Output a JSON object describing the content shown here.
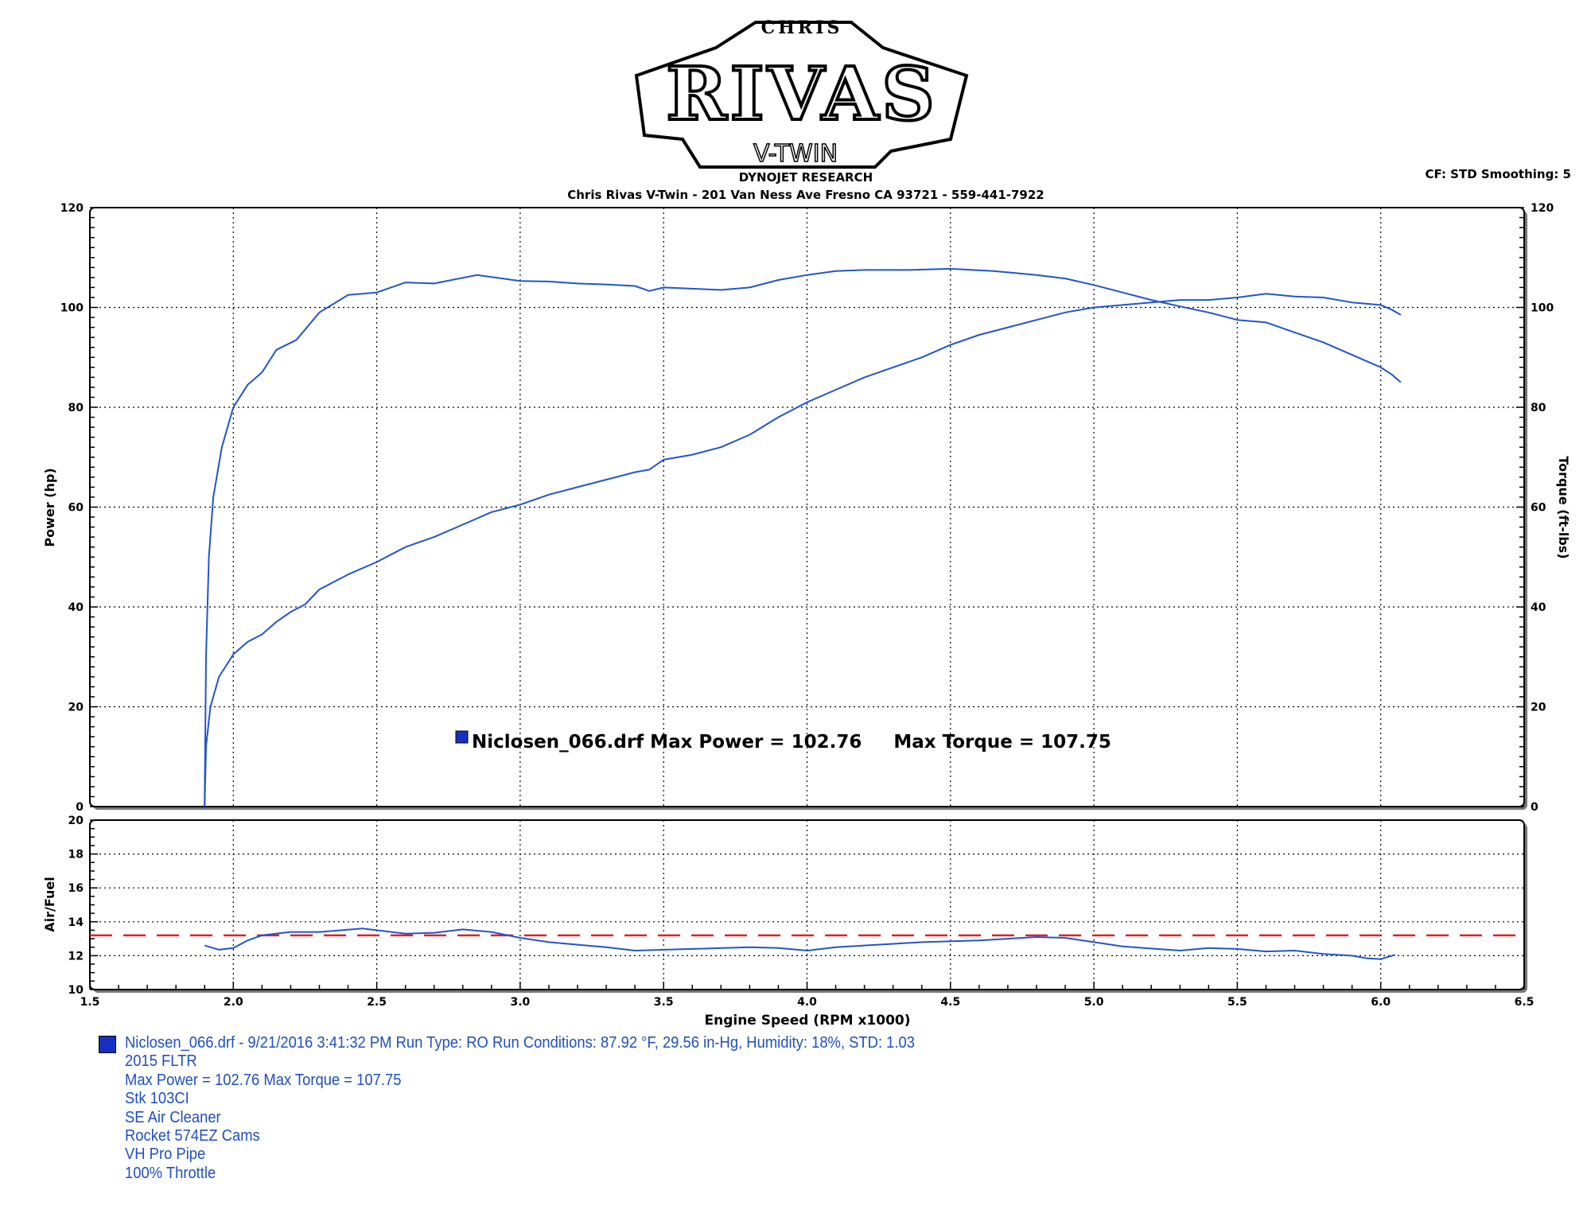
{
  "header": {
    "logo_text": [
      "CHRIS",
      "RIVAS",
      "V-TWIN"
    ],
    "subtitle": "DYNOJET RESEARCH",
    "address": "Chris Rivas V-Twin - 201 Van Ness Ave Fresno CA 93721 - 559-441-7922",
    "settings": "CF: STD  Smoothing: 5"
  },
  "colors": {
    "curve": "#2255cc",
    "afr_target": "#dd2222",
    "marker": "#1530c0"
  },
  "chart_data": [
    {
      "type": "line",
      "ylabel": "Power (hp)",
      "y2label": "Torque (ft-lbs)",
      "xlim": [
        1.5,
        6.5
      ],
      "ylim": [
        0,
        120
      ],
      "y2lim": [
        0,
        120
      ],
      "xticks": [
        "1.5",
        "2.0",
        "2.5",
        "3.0",
        "3.5",
        "4.0",
        "4.5",
        "5.0",
        "5.5",
        "6.0",
        "6.5"
      ],
      "yticks": [
        "0",
        "20",
        "40",
        "60",
        "80",
        "100",
        "120"
      ],
      "grid": true,
      "legend_text": "Niclosen_066.drf Max Power = 102.76     Max Torque = 107.75",
      "series": [
        {
          "key": "power",
          "points": [
            [
              1.9,
              0
            ],
            [
              1.905,
              12
            ],
            [
              1.92,
              20
            ],
            [
              1.95,
              26
            ],
            [
              2.0,
              30.5
            ],
            [
              2.05,
              33
            ],
            [
              2.1,
              34.5
            ],
            [
              2.15,
              37
            ],
            [
              2.2,
              39
            ],
            [
              2.25,
              40.5
            ],
            [
              2.3,
              43.5
            ],
            [
              2.4,
              46.5
            ],
            [
              2.5,
              49
            ],
            [
              2.6,
              52
            ],
            [
              2.7,
              54
            ],
            [
              2.8,
              56.5
            ],
            [
              2.9,
              59
            ],
            [
              3.0,
              60.5
            ],
            [
              3.1,
              62.5
            ],
            [
              3.2,
              64
            ],
            [
              3.3,
              65.5
            ],
            [
              3.4,
              67
            ],
            [
              3.45,
              67.5
            ],
            [
              3.5,
              69.5
            ],
            [
              3.6,
              70.5
            ],
            [
              3.7,
              72
            ],
            [
              3.8,
              74.5
            ],
            [
              3.9,
              78
            ],
            [
              4.0,
              81
            ],
            [
              4.1,
              83.5
            ],
            [
              4.2,
              86
            ],
            [
              4.3,
              88
            ],
            [
              4.4,
              90
            ],
            [
              4.5,
              92.5
            ],
            [
              4.6,
              94.5
            ],
            [
              4.7,
              96
            ],
            [
              4.8,
              97.5
            ],
            [
              4.9,
              99
            ],
            [
              5.0,
              100
            ],
            [
              5.1,
              100.5
            ],
            [
              5.2,
              101
            ],
            [
              5.3,
              101.5
            ],
            [
              5.4,
              101.5
            ],
            [
              5.5,
              102
            ],
            [
              5.6,
              102.76
            ],
            [
              5.7,
              102.2
            ],
            [
              5.8,
              102
            ],
            [
              5.9,
              101
            ],
            [
              6.0,
              100.5
            ],
            [
              6.04,
              99.5
            ],
            [
              6.07,
              98.5
            ]
          ]
        },
        {
          "key": "torque",
          "points": [
            [
              1.9,
              0
            ],
            [
              1.905,
              30
            ],
            [
              1.915,
              50
            ],
            [
              1.93,
              62
            ],
            [
              1.96,
              72
            ],
            [
              2.0,
              80
            ],
            [
              2.05,
              84.5
            ],
            [
              2.1,
              87
            ],
            [
              2.15,
              91.5
            ],
            [
              2.22,
              93.5
            ],
            [
              2.3,
              99
            ],
            [
              2.4,
              102.5
            ],
            [
              2.5,
              103
            ],
            [
              2.6,
              105
            ],
            [
              2.7,
              104.8
            ],
            [
              2.85,
              106.5
            ],
            [
              3.0,
              105.3
            ],
            [
              3.1,
              105.2
            ],
            [
              3.2,
              104.8
            ],
            [
              3.3,
              104.6
            ],
            [
              3.4,
              104.3
            ],
            [
              3.45,
              103.3
            ],
            [
              3.5,
              104
            ],
            [
              3.7,
              103.5
            ],
            [
              3.8,
              104
            ],
            [
              3.9,
              105.5
            ],
            [
              4.0,
              106.5
            ],
            [
              4.1,
              107.3
            ],
            [
              4.2,
              107.5
            ],
            [
              4.35,
              107.5
            ],
            [
              4.5,
              107.75
            ],
            [
              4.65,
              107.3
            ],
            [
              4.8,
              106.5
            ],
            [
              4.9,
              105.8
            ],
            [
              5.0,
              104.5
            ],
            [
              5.1,
              103
            ],
            [
              5.2,
              101.5
            ],
            [
              5.3,
              100.2
            ],
            [
              5.4,
              99
            ],
            [
              5.5,
              97.5
            ],
            [
              5.6,
              97
            ],
            [
              5.7,
              95
            ],
            [
              5.8,
              93
            ],
            [
              5.9,
              90.5
            ],
            [
              6.0,
              88
            ],
            [
              6.04,
              86.5
            ],
            [
              6.07,
              85
            ]
          ]
        }
      ]
    },
    {
      "type": "line",
      "ylabel": "Air/Fuel",
      "xlabel": "Engine Speed (RPM x1000)",
      "xlim": [
        1.5,
        6.5
      ],
      "ylim": [
        10,
        20
      ],
      "yticks": [
        "10",
        "12",
        "14",
        "16",
        "18",
        "20"
      ],
      "grid": true,
      "target_line": 13.2,
      "series": [
        {
          "key": "afr",
          "points": [
            [
              1.9,
              12.6
            ],
            [
              1.95,
              12.35
            ],
            [
              2.0,
              12.45
            ],
            [
              2.05,
              12.9
            ],
            [
              2.1,
              13.2
            ],
            [
              2.2,
              13.4
            ],
            [
              2.3,
              13.4
            ],
            [
              2.45,
              13.6
            ],
            [
              2.6,
              13.3
            ],
            [
              2.7,
              13.35
            ],
            [
              2.8,
              13.55
            ],
            [
              2.9,
              13.4
            ],
            [
              3.0,
              13.05
            ],
            [
              3.1,
              12.8
            ],
            [
              3.2,
              12.65
            ],
            [
              3.3,
              12.5
            ],
            [
              3.4,
              12.3
            ],
            [
              3.6,
              12.4
            ],
            [
              3.8,
              12.5
            ],
            [
              3.9,
              12.45
            ],
            [
              4.0,
              12.3
            ],
            [
              4.1,
              12.5
            ],
            [
              4.2,
              12.6
            ],
            [
              4.4,
              12.8
            ],
            [
              4.6,
              12.9
            ],
            [
              4.8,
              13.1
            ],
            [
              4.9,
              13.05
            ],
            [
              5.0,
              12.8
            ],
            [
              5.1,
              12.55
            ],
            [
              5.3,
              12.3
            ],
            [
              5.4,
              12.45
            ],
            [
              5.5,
              12.4
            ],
            [
              5.6,
              12.25
            ],
            [
              5.7,
              12.3
            ],
            [
              5.8,
              12.1
            ],
            [
              5.9,
              12.0
            ],
            [
              5.95,
              11.85
            ],
            [
              6.0,
              11.8
            ],
            [
              6.05,
              12.05
            ]
          ]
        }
      ]
    }
  ],
  "run_info": {
    "lines": [
      "Niclosen_066.drf - 9/21/2016 3:41:32 PM  Run Type: RO  Run Conditions: 87.92 °F, 29.56 in-Hg,  Humidity:  18%, STD: 1.03",
      "2015 FLTR",
      "Max Power = 102.76  Max Torque = 107.75",
      "Stk 103CI",
      "SE Air Cleaner",
      "Rocket 574EZ Cams",
      "VH Pro Pipe",
      "100% Throttle"
    ]
  }
}
